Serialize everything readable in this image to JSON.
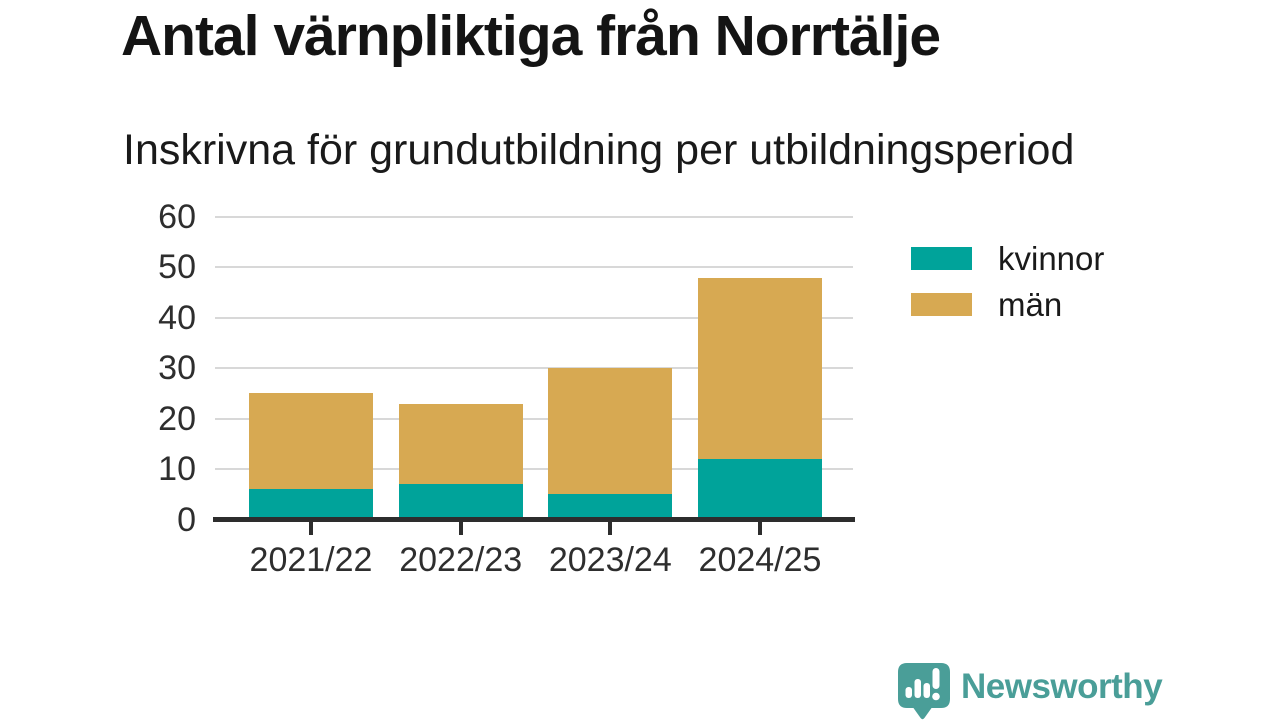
{
  "title": "Antal värnpliktiga från Norrtälje",
  "subtitle": "Inskrivna för grundutbildning per utbildningsperiod",
  "chart_data": {
    "type": "bar",
    "stacked": true,
    "title": "Antal värnpliktiga från Norrtälje",
    "subtitle": "Inskrivna för grundutbildning per utbildningsperiod",
    "categories": [
      "2021/22",
      "2022/23",
      "2023/24",
      "2024/25"
    ],
    "series": [
      {
        "name": "kvinnor",
        "color": "#00A39A",
        "values": [
          6,
          7,
          5,
          12
        ]
      },
      {
        "name": "män",
        "color": "#D7A952",
        "values": [
          19,
          16,
          25,
          36
        ]
      }
    ],
    "totals": [
      25,
      23,
      30,
      48
    ],
    "ylim": [
      0,
      60
    ],
    "yticks": [
      0,
      10,
      20,
      30,
      40,
      50,
      60
    ],
    "grid": "horizontal-only",
    "legend_position": "right",
    "xlabel": "",
    "ylabel": ""
  },
  "colors": {
    "background": "#FFFFFF",
    "gridline": "#D8D8D8",
    "axis": "#2D2D2D",
    "text": "#1A1A1A",
    "kvinnor": "#00A39A",
    "man": "#D7A952",
    "brand": "#4A9E98"
  },
  "branding": {
    "logo_text": "Newsworthy",
    "logo_icon": "bar-chart-speech-bubble-icon"
  }
}
